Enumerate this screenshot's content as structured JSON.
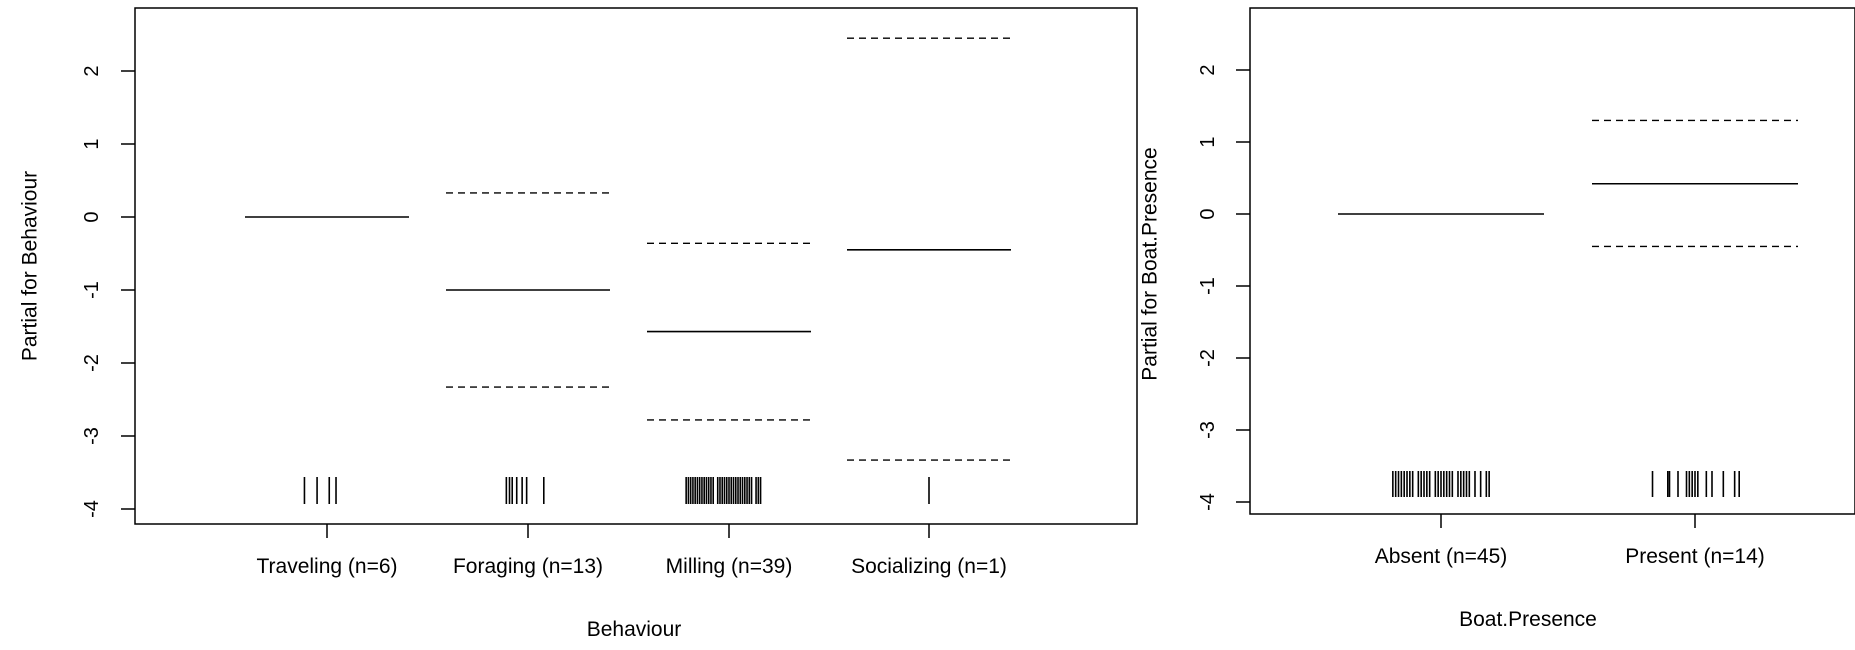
{
  "chart_data": [
    {
      "type": "line",
      "xlabel": "Behaviour",
      "ylabel": "Partial for Behaviour",
      "ylim": [
        -4.2,
        2.7
      ],
      "yticks": [
        -4,
        -3,
        -2,
        -1,
        0,
        1,
        2
      ],
      "ytick_labels": [
        "-4",
        "-3",
        "-2",
        "-1",
        "0",
        "1",
        "2"
      ],
      "categories": [
        "Traveling (n=6)",
        "Foraging (n=13)",
        "Milling (n=39)",
        "Socializing (n=1)"
      ],
      "estimate": [
        0,
        -1.0,
        -1.57,
        -0.45
      ],
      "lower": [
        null,
        -2.33,
        -2.78,
        -3.33
      ],
      "upper": [
        null,
        0.33,
        -0.36,
        2.45
      ],
      "rug": [
        [
          -0.5,
          -0.22,
          0.05,
          0.2
        ],
        [
          -0.48,
          -0.41,
          -0.35,
          -0.25,
          -0.13,
          -0.03,
          0.35
        ],
        [
          -0.95,
          -0.9,
          -0.85,
          -0.8,
          -0.75,
          -0.7,
          -0.65,
          -0.6,
          -0.55,
          -0.5,
          -0.45,
          -0.4,
          -0.35,
          -0.25,
          -0.2,
          -0.15,
          -0.1,
          -0.05,
          0.0,
          0.05,
          0.1,
          0.15,
          0.2,
          0.25,
          0.3,
          0.35,
          0.4,
          0.45,
          0.5,
          0.6,
          0.65,
          0.7
        ],
        [
          0.0
        ]
      ]
    },
    {
      "type": "line",
      "xlabel": "Boat.Presence",
      "ylabel": "Partial for Boat.Presence",
      "ylim": [
        -4.2,
        2.7
      ],
      "yticks": [
        -4,
        -3,
        -2,
        -1,
        0,
        1,
        2
      ],
      "ytick_labels": [
        "-4",
        "-3",
        "-2",
        "-1",
        "0",
        "1",
        "2"
      ],
      "categories": [
        "Absent (n=45)",
        "Present (n=14)"
      ],
      "estimate": [
        0,
        0.42
      ],
      "lower": [
        null,
        -0.45
      ],
      "upper": [
        null,
        1.3
      ],
      "rug": [
        [
          -0.85,
          -0.8,
          -0.75,
          -0.7,
          -0.65,
          -0.6,
          -0.55,
          -0.5,
          -0.4,
          -0.35,
          -0.3,
          -0.25,
          -0.2,
          -0.1,
          -0.05,
          0.0,
          0.05,
          0.1,
          0.15,
          0.2,
          0.3,
          0.35,
          0.4,
          0.45,
          0.5,
          0.6,
          0.7,
          0.8,
          0.85
        ],
        [
          -0.75,
          -0.48,
          -0.45,
          -0.3,
          -0.15,
          -0.1,
          -0.05,
          0.0,
          0.05,
          0.2,
          0.3,
          0.5,
          0.7,
          0.78
        ]
      ]
    }
  ]
}
